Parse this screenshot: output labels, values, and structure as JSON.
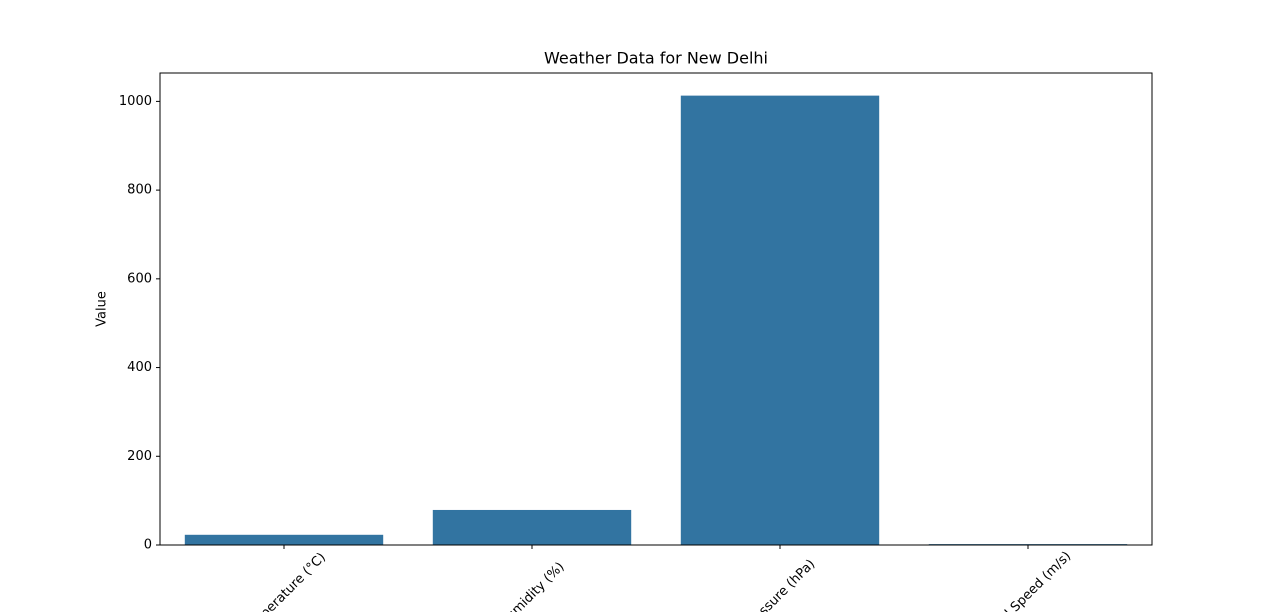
{
  "chart_data": {
    "type": "bar",
    "title": "Weather Data for New Delhi",
    "y_label": "Value",
    "categories": [
      "Temperature (°C)",
      "Humidity (%)",
      "Pressure (hPa)",
      "Wind Speed (m/s)"
    ],
    "values": [
      23,
      79,
      1013,
      2
    ],
    "color": "#3274a1",
    "ylim": [
      0,
      1064
    ],
    "yticks": [
      0,
      200,
      400,
      600,
      800,
      1000
    ],
    "grid": false
  }
}
